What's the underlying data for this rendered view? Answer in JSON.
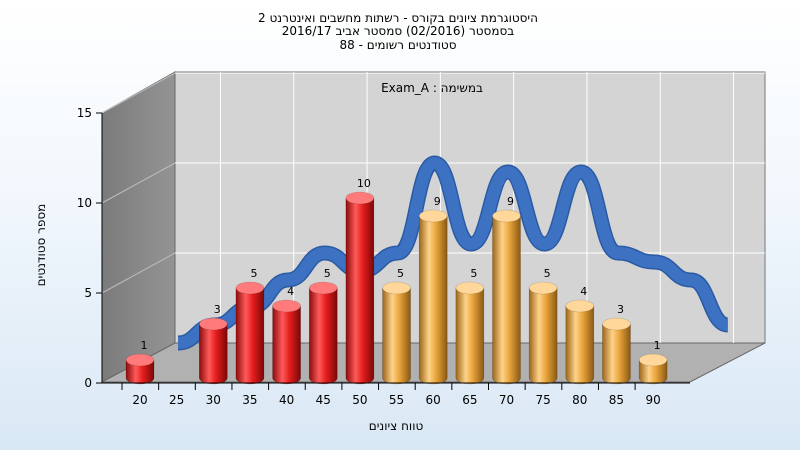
{
  "chart_data": {
    "type": "bar",
    "title_lines": [
      "היסטוגרמת ציונים בקורס - רשתות מחשבים ואינטרנט 2",
      "בסמסטר  (02/2016)  סמסטר אביב 2016/17",
      "סטודנטים רשומים - 88"
    ],
    "annotation": "Exam_A : במשימה",
    "xlabel": "טווח ציונים",
    "ylabel": "מספר סטודנטים",
    "ylim": [
      0,
      15
    ],
    "yticks": [
      0,
      5,
      10,
      15
    ],
    "x_tick_labels": [
      "20",
      "25",
      "30",
      "35",
      "40",
      "45",
      "50",
      "55",
      "60",
      "65",
      "70",
      "75",
      "80",
      "85",
      "90"
    ],
    "bars": [
      {
        "x": 20,
        "value": 1,
        "group": "fail"
      },
      {
        "x": 30,
        "value": 3,
        "group": "fail"
      },
      {
        "x": 35,
        "value": 5,
        "group": "fail"
      },
      {
        "x": 40,
        "value": 4,
        "group": "fail"
      },
      {
        "x": 45,
        "value": 5,
        "group": "fail"
      },
      {
        "x": 50,
        "value": 10,
        "group": "fail"
      },
      {
        "x": 55,
        "value": 5,
        "group": "pass"
      },
      {
        "x": 60,
        "value": 9,
        "group": "pass"
      },
      {
        "x": 65,
        "value": 5,
        "group": "pass"
      },
      {
        "x": 70,
        "value": 9,
        "group": "pass"
      },
      {
        "x": 75,
        "value": 5,
        "group": "pass"
      },
      {
        "x": 80,
        "value": 4,
        "group": "pass"
      },
      {
        "x": 85,
        "value": 3,
        "group": "pass"
      },
      {
        "x": 90,
        "value": 1,
        "group": "pass"
      }
    ],
    "trend": [
      {
        "x": 20,
        "value": 1
      },
      {
        "x": 25,
        "value": 2
      },
      {
        "x": 30,
        "value": 3
      },
      {
        "x": 35,
        "value": 4.5
      },
      {
        "x": 40,
        "value": 6
      },
      {
        "x": 45,
        "value": 5
      },
      {
        "x": 50,
        "value": 6
      },
      {
        "x": 55,
        "value": 11
      },
      {
        "x": 60,
        "value": 6.5
      },
      {
        "x": 65,
        "value": 10.5
      },
      {
        "x": 70,
        "value": 6.5
      },
      {
        "x": 75,
        "value": 10.5
      },
      {
        "x": 80,
        "value": 6
      },
      {
        "x": 85,
        "value": 5.5
      },
      {
        "x": 90,
        "value": 4.5
      },
      {
        "x": 95,
        "value": 2
      }
    ],
    "colors": {
      "fail": "#e51d1d",
      "pass": "#e9a53c",
      "trend": "#3d72c3",
      "back_wall": "#d4d4d4",
      "side_wall": "#7f7f7f",
      "floor": "#b0b0b0"
    },
    "grid": true
  }
}
